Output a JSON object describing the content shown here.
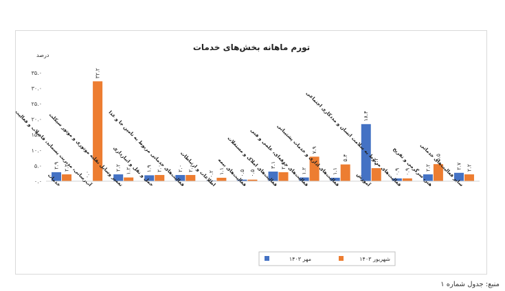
{
  "chart_data": {
    "type": "bar",
    "title": "تورم ماهانه بخش‌های خدمات",
    "ylabel": "درصد",
    "ylim": [
      0,
      35
    ],
    "yticks": [
      {
        "value": 0,
        "label": "۰.۰"
      },
      {
        "value": 5,
        "label": "۵.۰"
      },
      {
        "value": 10,
        "label": "۱۰.۰"
      },
      {
        "value": 15,
        "label": "۱۵.۰"
      },
      {
        "value": 20,
        "label": "۲۰.۰"
      },
      {
        "value": 25,
        "label": "۲۵.۰"
      },
      {
        "value": 30,
        "label": "۳۰.۰"
      },
      {
        "value": 35,
        "label": "۳۵.۰"
      }
    ],
    "grid": false,
    "legend_position": "bottom-center",
    "categories": [
      "خدمات",
      "آب‌رسانی، مدیریت پسماند، فاضلاب و فعالیت‌های تصفیه",
      "تعمیر وسایل نقلیه موتوری و موتور سیکلت",
      "حمل و نقل و انبارداری",
      "فعالیت‌های خدماتی مربوط به تامین جا و غذا",
      "اطلاعات و ارتباطات",
      "فعالیت‌های بیمه",
      "فعالیت‌های املاک و مستغلات",
      "فعالیت‌های حرفه‌ای، علمی و فنی",
      "فعالیت‌های اداری و خدمات پشتیبانی",
      "آموزش",
      "فعالیت‌های مربوط به سلامت انسان و مددکاری اجتماعی",
      "هنر، سرگرمی و تفریح",
      "سایر فعالیت‌های خدماتی"
    ],
    "series": [
      {
        "name": "مهر ۱۴۰۳",
        "color": "#4472c4",
        "values": [
          2.9,
          0.0,
          2.2,
          1.9,
          2.0,
          0.2,
          0.5,
          3.1,
          1.2,
          1.1,
          18.4,
          0.9,
          2.2,
          2.7
        ],
        "labels": [
          "۲.۹",
          "۰.۰",
          "۲.۲",
          "۱.۹",
          "۲.۰",
          "۰.۲",
          "۰.۵",
          "۳.۱",
          "۱.۲",
          "۱.۱",
          "۱۸.۴",
          "۰.۹",
          "۲.۲",
          "۲.۷"
        ]
      },
      {
        "name": "شهریور ۱۴۰۳",
        "color": "#ed7d31",
        "values": [
          2.2,
          32.2,
          1.2,
          2.0,
          2.0,
          1.1,
          0.5,
          2.9,
          7.9,
          5.4,
          4.2,
          0.9,
          5.5,
          2.2
        ],
        "labels": [
          "۲.۲",
          "۳۲.۲",
          "۱.۲",
          "۲.۰",
          "۲.۰",
          "۱.۱",
          "۰.۵",
          "۲.۹",
          "۷.۹",
          "۵.۴",
          "۴.۲",
          "۰.۹",
          "۵.۵",
          "۲.۲"
        ]
      }
    ]
  },
  "source_note": "منبع: جدول شماره ۱"
}
